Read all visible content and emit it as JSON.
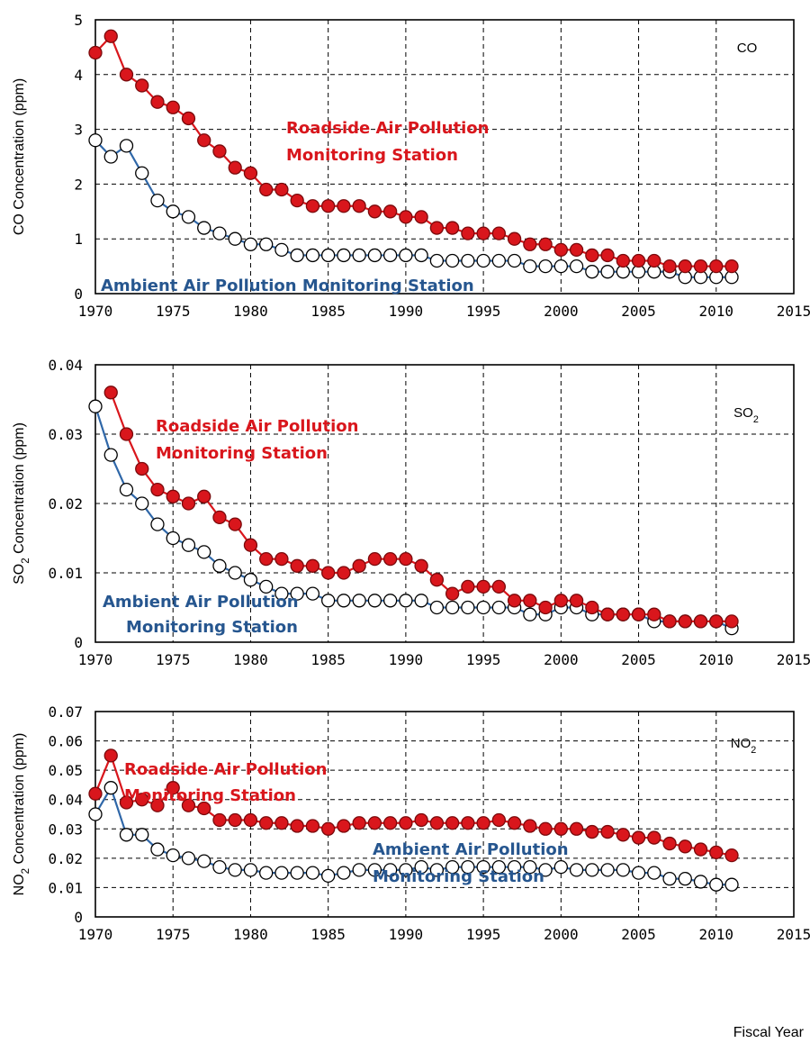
{
  "colors": {
    "roadside": "#d9161c",
    "ambient": "#2f67a8",
    "ambient_text": "#26568f",
    "grid": "#000000"
  },
  "x_axis": {
    "ticks": [
      "1970",
      "1975",
      "1980",
      "1985",
      "1990",
      "1995",
      "2000",
      "2005",
      "2010",
      "2015"
    ],
    "footer_label": "Fiscal Year"
  },
  "chart_data": [
    {
      "type": "line",
      "panel_tag": "CO",
      "ylabel": "CO Concentration (ppm)",
      "yticks": [
        "0",
        "1",
        "2",
        "3",
        "4",
        "5"
      ],
      "ylim": [
        0,
        5
      ],
      "xlim": [
        1970,
        2015
      ],
      "grid": true,
      "roadside_label_line1": "Roadside Air Pollution",
      "roadside_label_line2": "Monitoring Station",
      "ambient_label_line1": "Ambient Air Pollution Monitoring Station",
      "ambient_label_line2": "",
      "x": [
        1970,
        1971,
        1972,
        1973,
        1974,
        1975,
        1976,
        1977,
        1978,
        1979,
        1980,
        1981,
        1982,
        1983,
        1984,
        1985,
        1986,
        1987,
        1988,
        1989,
        1990,
        1991,
        1992,
        1993,
        1994,
        1995,
        1996,
        1997,
        1998,
        1999,
        2000,
        2001,
        2002,
        2003,
        2004,
        2005,
        2006,
        2007,
        2008,
        2009,
        2010,
        2011
      ],
      "series": [
        {
          "name": "Roadside Air Pollution Monitoring Station",
          "values": [
            4.4,
            4.7,
            4.0,
            3.8,
            3.5,
            3.4,
            3.2,
            2.8,
            2.6,
            2.3,
            2.2,
            1.9,
            1.9,
            1.7,
            1.6,
            1.6,
            1.6,
            1.6,
            1.5,
            1.5,
            1.4,
            1.4,
            1.2,
            1.2,
            1.1,
            1.1,
            1.1,
            1.0,
            0.9,
            0.9,
            0.8,
            0.8,
            0.7,
            0.7,
            0.6,
            0.6,
            0.6,
            0.5,
            0.5,
            0.5,
            0.5,
            0.5
          ]
        },
        {
          "name": "Ambient Air Pollution Monitoring Station",
          "values": [
            2.8,
            2.5,
            2.7,
            2.2,
            1.7,
            1.5,
            1.4,
            1.2,
            1.1,
            1.0,
            0.9,
            0.9,
            0.8,
            0.7,
            0.7,
            0.7,
            0.7,
            0.7,
            0.7,
            0.7,
            0.7,
            0.7,
            0.6,
            0.6,
            0.6,
            0.6,
            0.6,
            0.6,
            0.5,
            0.5,
            0.5,
            0.5,
            0.4,
            0.4,
            0.4,
            0.4,
            0.4,
            0.4,
            0.3,
            0.3,
            0.3,
            0.3
          ]
        }
      ]
    },
    {
      "type": "line",
      "panel_tag": "SO2",
      "ylabel": "SO2 Concentration (ppm)",
      "yticks": [
        "0",
        "0.01",
        "0.02",
        "0.03",
        "0.04"
      ],
      "ylim": [
        0,
        0.04
      ],
      "xlim": [
        1970,
        2015
      ],
      "grid": true,
      "roadside_label_line1": "Roadside Air Pollution",
      "roadside_label_line2": "Monitoring Station",
      "ambient_label_line1": "Ambient Air Pollution",
      "ambient_label_line2": "Monitoring Station",
      "x": [
        1970,
        1971,
        1972,
        1973,
        1974,
        1975,
        1976,
        1977,
        1978,
        1979,
        1980,
        1981,
        1982,
        1983,
        1984,
        1985,
        1986,
        1987,
        1988,
        1989,
        1990,
        1991,
        1992,
        1993,
        1994,
        1995,
        1996,
        1997,
        1998,
        1999,
        2000,
        2001,
        2002,
        2003,
        2004,
        2005,
        2006,
        2007,
        2008,
        2009,
        2010,
        2011
      ],
      "series": [
        {
          "name": "Roadside Air Pollution Monitoring Station",
          "values": [
            null,
            0.036,
            0.03,
            0.025,
            0.022,
            0.021,
            0.02,
            0.021,
            0.018,
            0.017,
            0.014,
            0.012,
            0.012,
            0.011,
            0.011,
            0.01,
            0.01,
            0.011,
            0.012,
            0.012,
            0.012,
            0.011,
            0.009,
            0.007,
            0.008,
            0.008,
            0.008,
            0.006,
            0.006,
            0.005,
            0.006,
            0.006,
            0.005,
            0.004,
            0.004,
            0.004,
            0.004,
            0.003,
            0.003,
            0.003,
            0.003,
            0.003
          ]
        },
        {
          "name": "Ambient Air Pollution Monitoring Station",
          "values": [
            0.034,
            0.027,
            0.022,
            0.02,
            0.017,
            0.015,
            0.014,
            0.013,
            0.011,
            0.01,
            0.009,
            0.008,
            0.007,
            0.007,
            0.007,
            0.006,
            0.006,
            0.006,
            0.006,
            0.006,
            0.006,
            0.006,
            0.005,
            0.005,
            0.005,
            0.005,
            0.005,
            0.005,
            0.004,
            0.004,
            0.005,
            0.005,
            0.004,
            0.004,
            0.004,
            0.004,
            0.003,
            0.003,
            0.003,
            0.003,
            0.003,
            0.002
          ]
        }
      ]
    },
    {
      "type": "line",
      "panel_tag": "NO2",
      "ylabel": "NO2 Concentration (ppm)",
      "yticks": [
        "0",
        "0.01",
        "0.02",
        "0.03",
        "0.04",
        "0.05",
        "0.06",
        "0.07"
      ],
      "ylim": [
        0,
        0.07
      ],
      "xlim": [
        1970,
        2015
      ],
      "grid": true,
      "roadside_label_line1": "Roadside Air Pollution",
      "roadside_label_line2": "Monitoring Station",
      "ambient_label_line1": "Ambient Air Pollution",
      "ambient_label_line2": "Monitoring Station",
      "x": [
        1970,
        1971,
        1972,
        1973,
        1974,
        1975,
        1976,
        1977,
        1978,
        1979,
        1980,
        1981,
        1982,
        1983,
        1984,
        1985,
        1986,
        1987,
        1988,
        1989,
        1990,
        1991,
        1992,
        1993,
        1994,
        1995,
        1996,
        1997,
        1998,
        1999,
        2000,
        2001,
        2002,
        2003,
        2004,
        2005,
        2006,
        2007,
        2008,
        2009,
        2010,
        2011
      ],
      "series": [
        {
          "name": "Roadside Air Pollution Monitoring Station",
          "values": [
            0.042,
            0.055,
            0.039,
            0.04,
            0.038,
            0.044,
            0.038,
            0.037,
            0.033,
            0.033,
            0.033,
            0.032,
            0.032,
            0.031,
            0.031,
            0.03,
            0.031,
            0.032,
            0.032,
            0.032,
            0.032,
            0.033,
            0.032,
            0.032,
            0.032,
            0.032,
            0.033,
            0.032,
            0.031,
            0.03,
            0.03,
            0.03,
            0.029,
            0.029,
            0.028,
            0.027,
            0.027,
            0.025,
            0.024,
            0.023,
            0.022,
            0.021
          ]
        },
        {
          "name": "Ambient Air Pollution Monitoring Station",
          "values": [
            0.035,
            0.044,
            0.028,
            0.028,
            0.023,
            0.021,
            0.02,
            0.019,
            0.017,
            0.016,
            0.016,
            0.015,
            0.015,
            0.015,
            0.015,
            0.014,
            0.015,
            0.016,
            0.016,
            0.016,
            0.016,
            0.017,
            0.016,
            0.017,
            0.017,
            0.017,
            0.017,
            0.017,
            0.017,
            0.016,
            0.017,
            0.016,
            0.016,
            0.016,
            0.016,
            0.015,
            0.015,
            0.013,
            0.013,
            0.012,
            0.011,
            0.011
          ]
        }
      ]
    }
  ]
}
